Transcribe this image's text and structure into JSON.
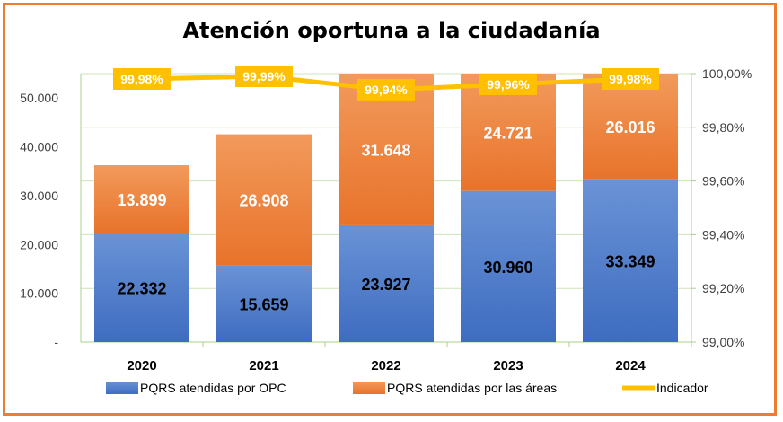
{
  "chart_data": {
    "type": "bar",
    "title": "Atención oportuna a la ciudadanía",
    "categories": [
      "2020",
      "2021",
      "2022",
      "2023",
      "2024"
    ],
    "series": [
      {
        "name": "PQRS atendidas por OPC",
        "kind": "stacked-bar",
        "axis": "left",
        "values": [
          22332,
          15659,
          23927,
          30960,
          33349
        ],
        "labels": [
          "22.332",
          "15.659",
          "23.927",
          "30.960",
          "33.349"
        ],
        "color": "#4472C4"
      },
      {
        "name": "PQRS atendidas por las áreas",
        "kind": "stacked-bar",
        "axis": "left",
        "values": [
          13899,
          26908,
          31648,
          24721,
          26016
        ],
        "labels": [
          "13.899",
          "26.908",
          "31.648",
          "24.721",
          "26.016"
        ],
        "color": "#ED7D31"
      },
      {
        "name": "Indicador",
        "kind": "line",
        "axis": "right",
        "values": [
          99.98,
          99.99,
          99.94,
          99.96,
          99.98
        ],
        "labels": [
          "99,98%",
          "99,99%",
          "99,94%",
          "99,96%",
          "99,98%"
        ],
        "color": "#FFC000"
      }
    ],
    "y_left": {
      "lim": [
        0,
        55000
      ],
      "ticks": [
        0,
        10000,
        20000,
        30000,
        40000,
        50000
      ],
      "tick_labels": [
        "-",
        "10.000",
        "20.000",
        "30.000",
        "40.000",
        "50.000"
      ]
    },
    "y_right": {
      "lim": [
        99.0,
        100.0
      ],
      "ticks": [
        99.0,
        99.2,
        99.4,
        99.6,
        99.8,
        100.0
      ],
      "tick_labels": [
        "99,00%",
        "99,20%",
        "99,40%",
        "99,60%",
        "99,80%",
        "100,00%"
      ]
    },
    "grid": true,
    "legend_position": "bottom"
  }
}
